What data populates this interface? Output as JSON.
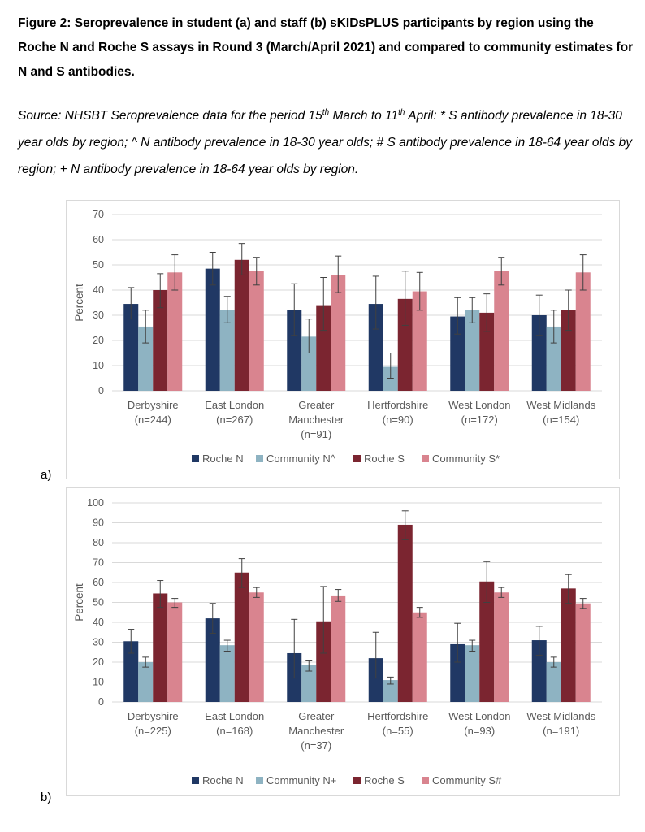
{
  "caption": {
    "title": "Figure 2: Seroprevalence in student (a) and staff (b) sKIDsPLUS participants by region using the Roche N and Roche S assays in Round 3 (March/April 2021) and compared to community estimates for N and S antibodies.",
    "source_pre": "Source: NHSBT Seroprevalence data for the period 15",
    "source_sup1": "th",
    "source_mid": " March to 11",
    "source_sup2": "th",
    "source_post": " April: * S antibody prevalence in 18-30 year olds by region; ^ N antibody prevalence in 18-30 year olds; # S antibody prevalence in 18-64 year olds by region; + N antibody prevalence in 18-64 year olds by region."
  },
  "colors": {
    "roche_n": "#203864",
    "community_n": "#8eb3c2",
    "roche_s": "#7b2530",
    "community_s": "#d9848f",
    "grid": "#d9d9d9",
    "axis_text": "#595959",
    "error_bar": "#404040"
  },
  "chart_data": [
    {
      "panel_label": "a)",
      "type": "bar",
      "ylabel": "Percent",
      "ylim": [
        0,
        70
      ],
      "yticks": [
        0,
        10,
        20,
        30,
        40,
        50,
        60,
        70
      ],
      "grid": true,
      "legend_position": "bottom",
      "categories": [
        [
          "Derbyshire",
          "(n=244)"
        ],
        [
          "East London",
          "(n=267)"
        ],
        [
          "Greater",
          "Manchester",
          "(n=91)"
        ],
        [
          "Hertfordshire",
          "(n=90)"
        ],
        [
          "West London",
          "(n=172)"
        ],
        [
          "West Midlands",
          "(n=154)"
        ]
      ],
      "series": [
        {
          "name": "Roche N",
          "color_key": "roche_n",
          "values": [
            34.5,
            48.5,
            32,
            34.5,
            29.5,
            30
          ],
          "err_low": [
            28.5,
            42,
            22,
            24.5,
            22.5,
            22
          ],
          "err_high": [
            41,
            55,
            42.5,
            45.5,
            37,
            38
          ]
        },
        {
          "name": "Community N^",
          "color_key": "community_n",
          "values": [
            25.5,
            32,
            21.5,
            9.5,
            32,
            25.5
          ],
          "err_low": [
            19,
            27,
            15,
            5,
            27,
            19
          ],
          "err_high": [
            32,
            37.5,
            28.5,
            15,
            37,
            32
          ]
        },
        {
          "name": "Roche S",
          "color_key": "roche_s",
          "values": [
            40,
            52,
            34,
            36.5,
            31,
            32
          ],
          "err_low": [
            33,
            46,
            24,
            26,
            23.5,
            24
          ],
          "err_high": [
            46.5,
            58.5,
            45,
            47.5,
            38.5,
            40
          ]
        },
        {
          "name": "Community S*",
          "color_key": "community_s",
          "values": [
            47,
            47.5,
            46,
            39.5,
            47.5,
            47
          ],
          "err_low": [
            40,
            42,
            39,
            32,
            42,
            40
          ],
          "err_high": [
            54,
            53,
            53.5,
            47,
            53,
            54
          ]
        }
      ]
    },
    {
      "panel_label": "b)",
      "type": "bar",
      "ylabel": "Percent",
      "ylim": [
        0,
        100
      ],
      "yticks": [
        0,
        10,
        20,
        30,
        40,
        50,
        60,
        70,
        80,
        90,
        100
      ],
      "grid": true,
      "legend_position": "bottom",
      "categories": [
        [
          "Derbyshire",
          "(n=225)"
        ],
        [
          "East London",
          "(n=168)"
        ],
        [
          "Greater",
          "Manchester",
          "(n=37)"
        ],
        [
          "Hertfordshire",
          "(n=55)"
        ],
        [
          "West London",
          "(n=93)"
        ],
        [
          "West Midlands",
          "(n=191)"
        ]
      ],
      "series": [
        {
          "name": "Roche N",
          "color_key": "roche_n",
          "values": [
            30.5,
            42,
            24.5,
            22,
            29,
            31
          ],
          "err_low": [
            24.5,
            34.5,
            12,
            12,
            20,
            23.5
          ],
          "err_high": [
            36.5,
            49.5,
            41.5,
            35,
            39.5,
            38
          ]
        },
        {
          "name": "Community N+",
          "color_key": "community_n",
          "values": [
            20,
            28.5,
            18.5,
            11,
            28.5,
            20
          ],
          "err_low": [
            17.5,
            25.5,
            15.5,
            9,
            25.5,
            17.5
          ],
          "err_high": [
            22.5,
            31,
            21,
            12.5,
            31,
            22.5
          ]
        },
        {
          "name": "Roche S",
          "color_key": "roche_s",
          "values": [
            54.5,
            65,
            40.5,
            89,
            60.5,
            57
          ],
          "err_low": [
            47.5,
            57.5,
            24.5,
            81.5,
            50,
            49.5
          ],
          "err_high": [
            61,
            72,
            58,
            96,
            70.5,
            64
          ]
        },
        {
          "name": "Community S#",
          "color_key": "community_s",
          "values": [
            50,
            55,
            53.5,
            45,
            55,
            49.5
          ],
          "err_low": [
            47.5,
            52.5,
            50.5,
            42.5,
            52.5,
            47
          ],
          "err_high": [
            52,
            57.5,
            56.5,
            47.5,
            57.5,
            52
          ]
        }
      ]
    }
  ]
}
